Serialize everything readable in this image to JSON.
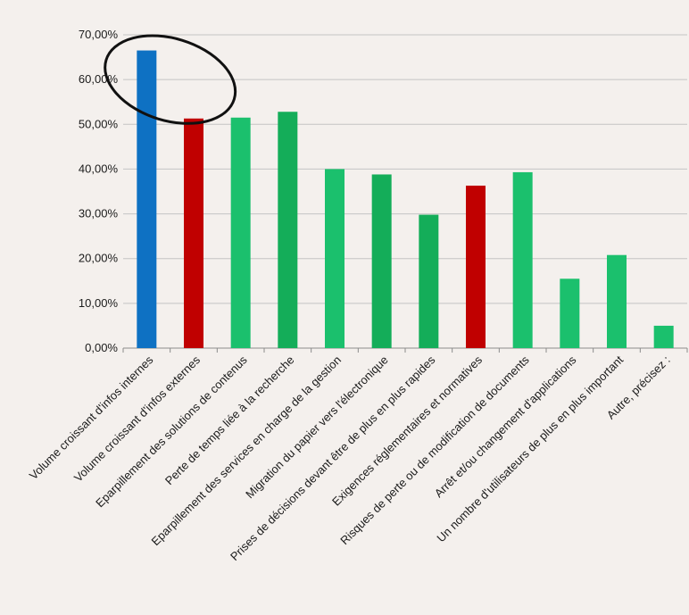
{
  "chart_data": {
    "type": "bar",
    "title": "",
    "xlabel": "",
    "ylabel": "",
    "ylim": [
      0,
      70
    ],
    "yticks": [
      "0,00%",
      "10,00%",
      "20,00%",
      "30,00%",
      "40,00%",
      "50,00%",
      "60,00%",
      "70,00%"
    ],
    "grid": true,
    "legend": "none",
    "categories": [
      "Volume croissant d'infos internes",
      "Volume croissant d'infos externes",
      "Eparpillement des solutions de contenus",
      "Perte de temps liée à la recherche",
      "Eparpillement des services en charge de la gestion",
      "Migration du papier vers l'électronique",
      "Prises de décisions devant être de plus en plus rapides",
      "Exigences réglementaires et normatives",
      "Risques de perte ou de modification de documents",
      "Arrêt et/ou changement d'applications",
      "Un nombre d'utilisateurs de plus en plus important",
      "Autre, précisez :"
    ],
    "values": [
      66.5,
      51.3,
      51.5,
      52.8,
      40.0,
      38.8,
      29.8,
      36.3,
      39.3,
      15.5,
      20.8,
      5.0
    ],
    "colors": [
      "#0e71c3",
      "#c00000",
      "#1bc06d",
      "#14ad59",
      "#1bc06d",
      "#14ad59",
      "#14ad59",
      "#c00000",
      "#1bc06d",
      "#1bc06d",
      "#1bc06d",
      "#1bc06d"
    ],
    "highlight": {
      "shape": "ellipse",
      "color": "#111111",
      "covers": [
        "Volume croissant d'infos internes",
        "Volume croissant d'infos externes"
      ]
    }
  }
}
